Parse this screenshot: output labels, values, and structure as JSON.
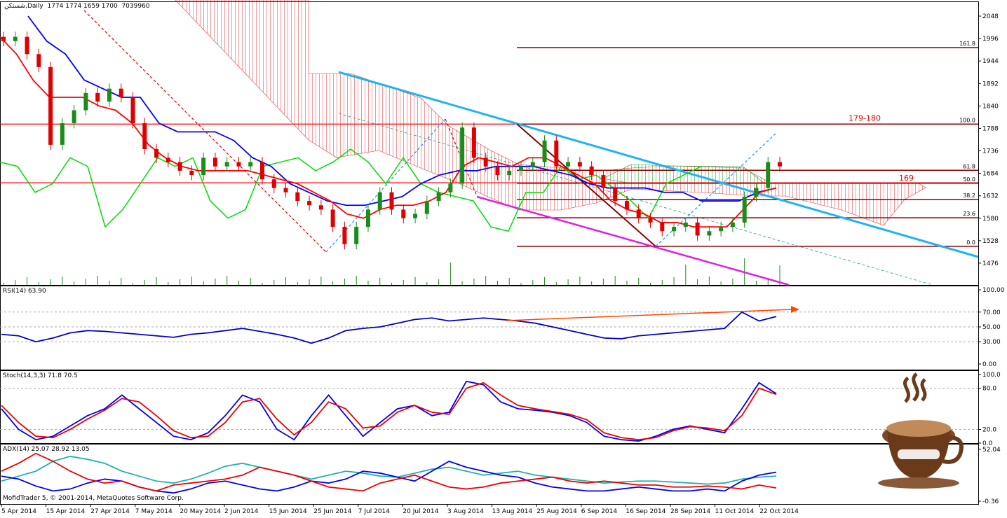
{
  "header": {
    "symbol": "شستکن",
    "timeframe": "Daily",
    "ohlc": "1774 1774 1659 1700",
    "volume": "7039960"
  },
  "copyright": "MofidTrader 5, © 2001-2014, MetaQuotes Software Corp.",
  "colors": {
    "bull": "#1a8c1a",
    "bear": "#e00000",
    "tenkan": "#ff0000",
    "kijun": "#0000ff",
    "chikou": "#00dd00",
    "trend_cyan": "#1eb4f0",
    "trend_magenta": "#e020e0",
    "fib": "#8b0000"
  },
  "chart_data": [
    {
      "type": "candlestick",
      "panel": "price",
      "yticks": [
        2048,
        1996,
        1944,
        1892,
        1840,
        1788,
        1736,
        1684,
        1632,
        1580,
        1528,
        1476
      ],
      "ylim": [
        1430,
        2078
      ],
      "xticks": [
        "5 Apr 2014",
        "15 Apr 2014",
        "27 Apr 2014",
        "7 May 2014",
        "20 May 2014",
        "2 Jun 2014",
        "15 Jun 2014",
        "25 Jun 2014",
        "7 Jul 2014",
        "20 Jul 2014",
        "3 Aug 2014",
        "13 Aug 2014",
        "25 Aug 2014",
        "6 Sep 2014",
        "16 Sep 2014",
        "28 Sep 2014",
        "11 Oct 2014",
        "22 Oct 2014"
      ],
      "closes": [
        1990,
        2000,
        1960,
        1930,
        1750,
        1800,
        1830,
        1870,
        1850,
        1880,
        1860,
        1800,
        1740,
        1720,
        1710,
        1690,
        1680,
        1720,
        1700,
        1710,
        1700,
        1710,
        1670,
        1650,
        1640,
        1620,
        1610,
        1600,
        1560,
        1520,
        1560,
        1600,
        1640,
        1600,
        1580,
        1590,
        1620,
        1640,
        1660,
        1790,
        1720,
        1700,
        1680,
        1690,
        1700,
        1710,
        1760,
        1700,
        1710,
        1700,
        1680,
        1650,
        1620,
        1600,
        1580,
        1570,
        1550,
        1560,
        1570,
        1540,
        1550,
        1560,
        1570,
        1630,
        1650,
        1710,
        1700
      ],
      "tenkan": [
        2000,
        1960,
        1900,
        1860,
        1860,
        1860,
        1840,
        1830,
        1800,
        1750,
        1720,
        1700,
        1690,
        1690,
        1690,
        1690,
        1680,
        1670,
        1660,
        1640,
        1620,
        1590,
        1580,
        1600,
        1610,
        1610,
        1620,
        1640,
        1700,
        1720,
        1710,
        1700,
        1720,
        1720,
        1700,
        1680,
        1660,
        1620,
        1600,
        1590,
        1570,
        1570,
        1560,
        1560,
        1560,
        1600,
        1640,
        1650
      ],
      "kijun": [
        2048,
        1990,
        1960,
        1900,
        1880,
        1860,
        1860,
        1800,
        1780,
        1780,
        1780,
        1760,
        1720,
        1700,
        1660,
        1640,
        1620,
        1610,
        1610,
        1620,
        1630,
        1660,
        1680,
        1690,
        1690,
        1700,
        1700,
        1700,
        1690,
        1680,
        1660,
        1650,
        1650,
        1650,
        1640,
        1640,
        1620,
        1620,
        1620,
        1640,
        1650
      ],
      "chikou": [
        1710,
        1700,
        1640,
        1660,
        1720,
        1700,
        1560,
        1600,
        1660,
        1720,
        1700,
        1720,
        1620,
        1580,
        1600,
        1700,
        1710,
        1720,
        1690,
        1710,
        1740,
        1710,
        1660,
        1720,
        1660,
        1640,
        1630,
        1620,
        1560,
        1550,
        1640,
        1640,
        1700,
        1670,
        1680,
        1650,
        1620,
        1580,
        1660,
        1680,
        1700
      ],
      "volume_max": 1,
      "horizontal_levels": [
        1798,
        1662
      ],
      "level_labels": [
        "179-180",
        "169"
      ],
      "fib_levels": [
        {
          "label": "161.8",
          "price": 1975
        },
        {
          "label": "100.0",
          "price": 1798
        },
        {
          "label": "61.8",
          "price": 1691
        },
        {
          "label": "50.0",
          "price": 1661
        },
        {
          "label": "38.2",
          "price": 1623
        },
        {
          "label": "23.6",
          "price": 1581
        },
        {
          "label": "0.0",
          "price": 1515
        }
      ]
    },
    {
      "type": "line",
      "panel": "rsi",
      "title": "RSI(14) 63.90",
      "yticks": [
        "100.00",
        "70.00",
        "50.00",
        "30.00",
        "0.00"
      ],
      "ylim": [
        0,
        100
      ],
      "values": [
        40,
        38,
        30,
        35,
        42,
        45,
        44,
        42,
        40,
        38,
        36,
        40,
        42,
        45,
        48,
        44,
        40,
        35,
        28,
        35,
        45,
        48,
        50,
        55,
        60,
        62,
        58,
        60,
        62,
        60,
        58,
        55,
        50,
        45,
        40,
        35,
        34,
        38,
        40,
        42,
        44,
        46,
        48,
        70,
        58,
        64
      ]
    },
    {
      "type": "line",
      "panel": "stoch",
      "title": "Stoch(14,3,3) 71.8 70.5",
      "yticks": [
        "100.0",
        "80.0",
        "20.0",
        "0.0"
      ],
      "ylim": [
        0,
        100
      ],
      "k": [
        50,
        20,
        5,
        10,
        25,
        40,
        50,
        70,
        50,
        30,
        10,
        5,
        15,
        40,
        70,
        60,
        20,
        5,
        40,
        70,
        40,
        10,
        30,
        50,
        55,
        40,
        45,
        90,
        85,
        60,
        50,
        48,
        45,
        40,
        30,
        10,
        5,
        3,
        10,
        20,
        25,
        20,
        15,
        50,
        88,
        72
      ],
      "d": [
        55,
        30,
        10,
        8,
        20,
        35,
        48,
        65,
        60,
        40,
        18,
        8,
        10,
        30,
        60,
        65,
        35,
        12,
        30,
        60,
        50,
        22,
        25,
        45,
        55,
        45,
        42,
        80,
        88,
        70,
        55,
        50,
        46,
        42,
        34,
        15,
        8,
        5,
        8,
        18,
        24,
        22,
        18,
        40,
        80,
        71
      ]
    },
    {
      "type": "line",
      "panel": "adx",
      "title": "ADX(14) 25.07 28.92 13.05",
      "yticks": [
        "52.04",
        "-0.36"
      ],
      "ylim": [
        -0.36,
        52.04
      ],
      "adx": [
        20,
        25,
        30,
        40,
        45,
        42,
        38,
        30,
        25,
        20,
        18,
        22,
        28,
        35,
        38,
        34,
        30,
        26,
        22,
        26,
        30,
        28,
        25,
        24,
        28,
        32,
        34,
        30,
        26,
        28,
        30,
        26,
        24,
        22,
        20,
        18,
        19,
        20,
        20,
        19,
        18,
        17,
        18,
        22,
        24,
        25
      ],
      "plus_di": [
        25,
        22,
        15,
        10,
        12,
        18,
        22,
        20,
        14,
        10,
        8,
        12,
        18,
        20,
        16,
        12,
        10,
        14,
        20,
        18,
        22,
        30,
        28,
        24,
        20,
        30,
        40,
        34,
        30,
        26,
        24,
        18,
        14,
        12,
        10,
        10,
        12,
        14,
        12,
        10,
        10,
        12,
        10,
        20,
        26,
        29
      ],
      "minus_di": [
        30,
        38,
        48,
        40,
        30,
        22,
        18,
        20,
        14,
        10,
        16,
        18,
        20,
        22,
        26,
        34,
        30,
        26,
        20,
        14,
        12,
        10,
        18,
        22,
        26,
        20,
        14,
        12,
        14,
        18,
        20,
        22,
        24,
        20,
        18,
        20,
        18,
        16,
        16,
        14,
        14,
        15,
        14,
        12,
        16,
        13
      ]
    }
  ]
}
